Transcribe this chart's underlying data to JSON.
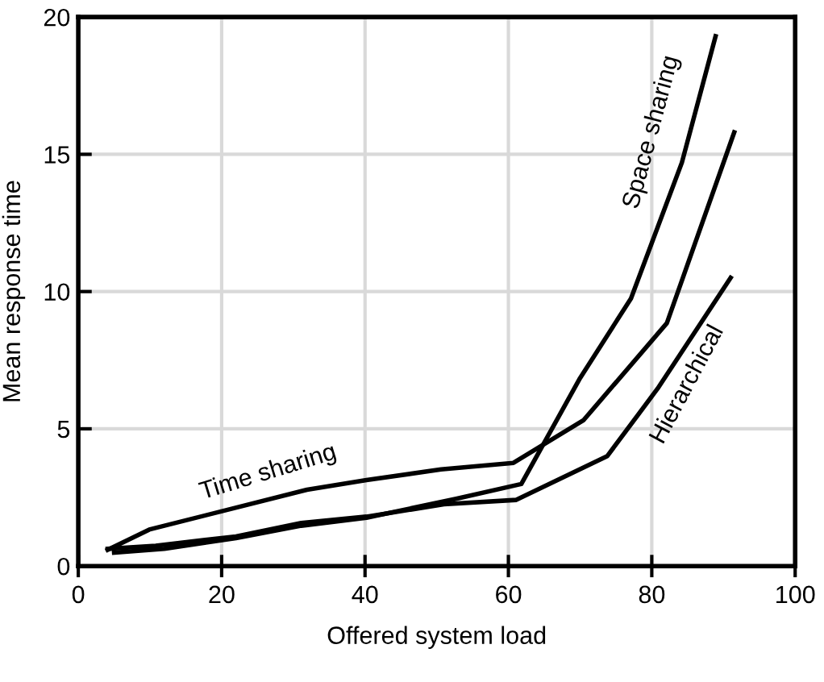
{
  "chart_data": {
    "type": "line",
    "xlabel": "Offered system load",
    "ylabel": "Mean response time",
    "xlim": [
      0,
      100
    ],
    "xticks": [
      0,
      20,
      40,
      60,
      80,
      100
    ],
    "ylim": [
      0,
      20
    ],
    "yticks": [
      0,
      5,
      10,
      15,
      20
    ],
    "grid": true,
    "legend": false,
    "marker": "none",
    "line_style": "solid",
    "series": [
      {
        "name": "Time sharing",
        "color": "#000000",
        "x": [
          4.1,
          9.9,
          31.9,
          40.2,
          50.6,
          60.7,
          70.5,
          82.1,
          91.5
        ],
        "values": [
          0.59,
          1.33,
          2.78,
          3.13,
          3.52,
          3.76,
          5.32,
          8.85,
          15.8
        ]
      },
      {
        "name": "Space sharing",
        "color": "#000000",
        "x": [
          5,
          12,
          22,
          31.1,
          40.2,
          52.7,
          61.8,
          70,
          77.1,
          84.2,
          88.9
        ],
        "values": [
          0.49,
          0.63,
          1.02,
          1.47,
          1.76,
          2.45,
          2.99,
          6.85,
          9.75,
          14.7,
          19.3
        ]
      },
      {
        "name": "Hierarchical",
        "color": "#000000",
        "x": [
          4.1,
          10.8,
          22,
          31.1,
          40.2,
          51,
          61.1,
          73.8,
          80.8,
          91
        ],
        "values": [
          0.63,
          0.74,
          1.08,
          1.57,
          1.8,
          2.25,
          2.41,
          4.01,
          6.46,
          10.5
        ]
      }
    ]
  }
}
